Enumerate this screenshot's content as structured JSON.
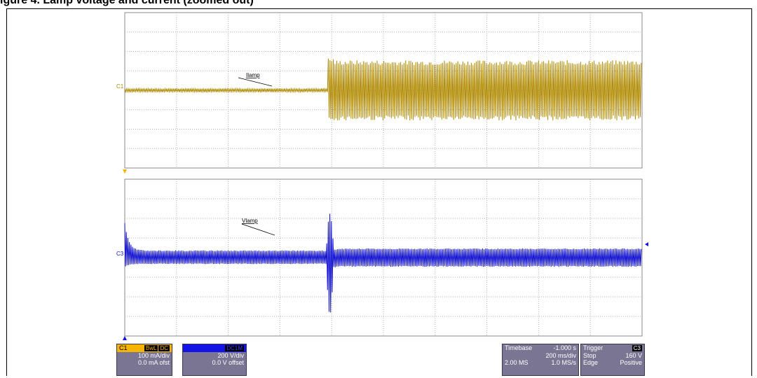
{
  "caption": "igure 4. Lamp voltage and current (zoomed out)",
  "chart_data": [
    {
      "type": "line",
      "channel": "C1",
      "series": [
        {
          "name": "Ilamp",
          "color": "#b08a00",
          "description": "flat baseline near 0 with thin noise until ~3.9 div, then large oscillation of about ±1.45 div"
        }
      ],
      "x_range": [
        0,
        10
      ],
      "y_range": [
        -4,
        4
      ],
      "grid": true,
      "annotation": "Ilamp"
    },
    {
      "type": "line",
      "channel": "C3",
      "series": [
        {
          "name": "Vlamp",
          "color": "#1010d0",
          "description": "starts high with envelope decaying to about ±0.33 div, burst at ~3.9 div, then steady band of about ±0.45 div"
        }
      ],
      "x_range": [
        0,
        10
      ],
      "y_range": [
        -4,
        4
      ],
      "grid": true,
      "annotation": "Vlamp"
    }
  ],
  "c1": {
    "tag": "C1",
    "name": "C1",
    "bw": "BwL",
    "coupling": "DC",
    "scale": "100 mA/div",
    "offset": "0.0 mA ofst",
    "color": "#f5b400"
  },
  "c3": {
    "tag": "C3",
    "name": "C3",
    "coupling": "DC1M",
    "scale": "200 V/div",
    "offset": "0.0 V offset",
    "color": "#1414e6"
  },
  "timebase": {
    "label": "Timebase",
    "delay": "-1.000 s",
    "scale": "200 ms/div",
    "samples": "2.00 MS",
    "rate": "1.0 MS/s"
  },
  "trigger": {
    "label": "Trigger",
    "source": "C3",
    "mode": "Stop",
    "level": "160 V",
    "type": "Edge",
    "slope": "Positive"
  }
}
